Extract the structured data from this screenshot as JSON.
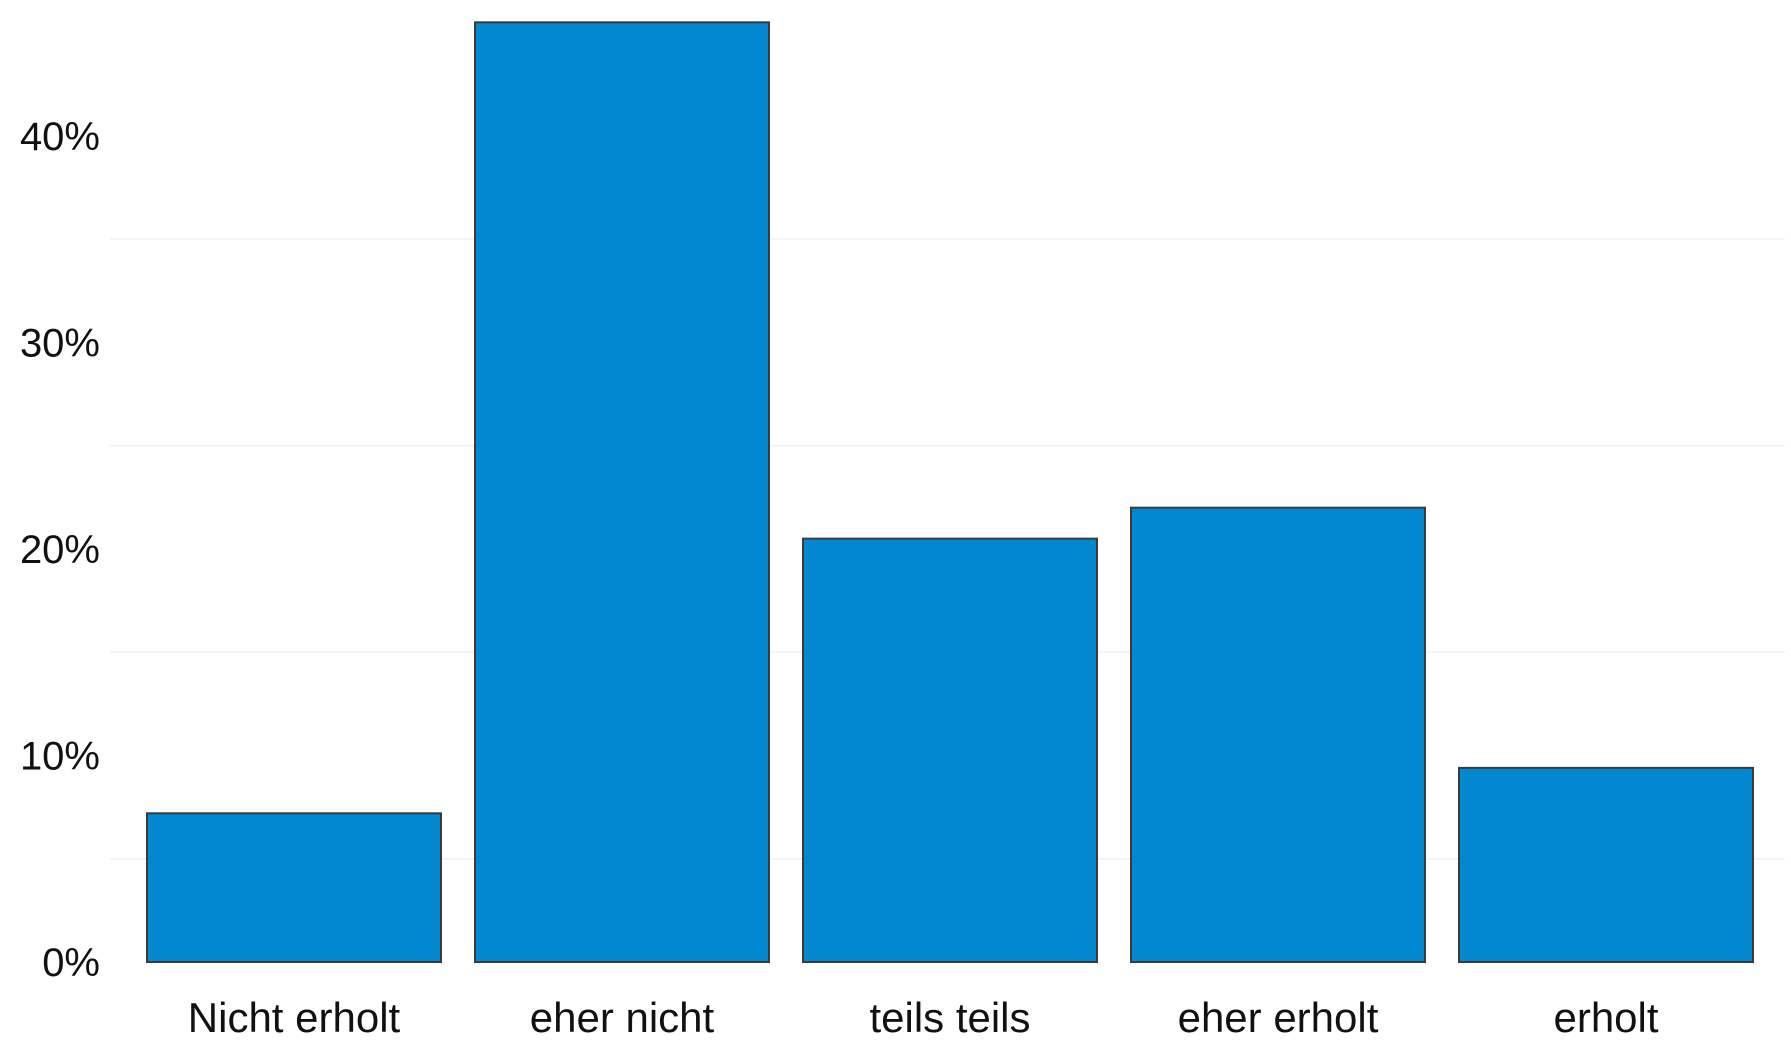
{
  "chart_data": {
    "type": "bar",
    "categories": [
      "Nicht erholt",
      "eher nicht",
      "teils teils",
      "eher erholt",
      "erholt"
    ],
    "values": [
      7.2,
      45.5,
      20.5,
      22.0,
      9.4
    ],
    "yticks": [
      "0%",
      "10%",
      "20%",
      "30%",
      "40%"
    ],
    "ytick_values": [
      0,
      10,
      20,
      30,
      40
    ],
    "ylim": [
      0,
      46
    ],
    "grid": true,
    "bar_color": "#0288d1",
    "grid_color": "#f2f2f2"
  }
}
